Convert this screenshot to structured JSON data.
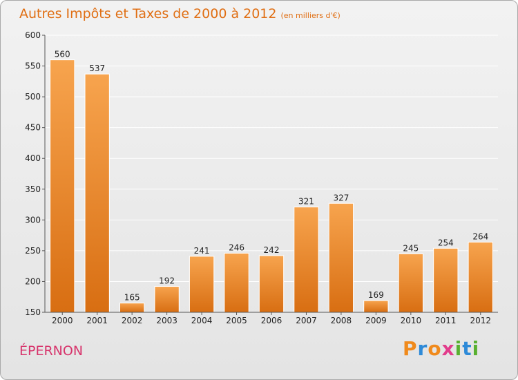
{
  "header": {
    "title": "Autres Impôts et Taxes de 2000 à 2012",
    "subtitle": "(en milliers d'€)"
  },
  "footer": {
    "city": "ÉPERNON",
    "logo": {
      "letters": [
        "P",
        "r",
        "o",
        "x",
        "i",
        "t",
        "i"
      ],
      "colors": [
        "#f08a1c",
        "#2e8ad8",
        "#f08a1c",
        "#e23c8c",
        "#58b030",
        "#2e8ad8",
        "#58b030"
      ]
    }
  },
  "chart_data": {
    "type": "bar",
    "title": "Autres Impôts et Taxes de 2000 à 2012",
    "subtitle": "(en milliers d'€)",
    "categories": [
      "2000",
      "2001",
      "2002",
      "2003",
      "2004",
      "2005",
      "2006",
      "2007",
      "2008",
      "2009",
      "2010",
      "2011",
      "2012"
    ],
    "values": [
      560,
      537,
      165,
      192,
      241,
      246,
      242,
      321,
      327,
      169,
      245,
      254,
      264
    ],
    "ylim": [
      150,
      600
    ],
    "yticks": [
      150,
      200,
      250,
      300,
      350,
      400,
      450,
      500,
      550,
      600
    ],
    "grid": true,
    "colors": {
      "bar_top": "#f7a44e",
      "bar_bottom": "#d86e12",
      "grid": "#ffffff"
    }
  }
}
